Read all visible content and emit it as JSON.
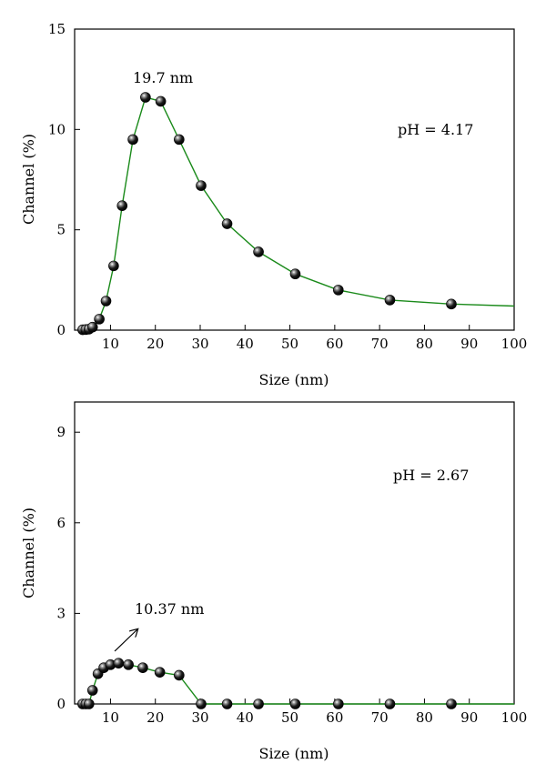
{
  "chart_data": [
    {
      "type": "line",
      "xlabel": "Size (nm)",
      "ylabel": "Channel (%)",
      "xlim": [
        2,
        100
      ],
      "ylim": [
        0,
        15
      ],
      "xticks": [
        10,
        20,
        30,
        40,
        50,
        60,
        70,
        80,
        90,
        100
      ],
      "yticks": [
        0,
        5,
        10,
        15
      ],
      "line_color": "#1a8a1a",
      "marker": "black-sphere",
      "grid": false,
      "series": [
        {
          "x": [
            3.8,
            4.5,
            5.2,
            6.0,
            7.5,
            9.0,
            10.7,
            12.6,
            15.0,
            17.8,
            21.2,
            25.3,
            30.2,
            36.0,
            43.0,
            51.2,
            60.8,
            72.3,
            86.0
          ],
          "y": [
            0.02,
            0.03,
            0.05,
            0.15,
            0.55,
            1.45,
            3.2,
            6.2,
            9.5,
            11.6,
            11.4,
            9.5,
            7.2,
            5.3,
            3.9,
            2.8,
            2.0,
            1.5,
            1.3
          ]
        }
      ],
      "line_tail": {
        "x": 100,
        "y": 1.2
      },
      "annotations": [
        {
          "text": "19.7 nm"
        },
        {
          "text": "pH = 4.17"
        }
      ]
    },
    {
      "type": "line",
      "xlabel": "Size (nm)",
      "ylabel": "Channel (%)",
      "xlim": [
        2,
        100
      ],
      "ylim": [
        0,
        10
      ],
      "xticks": [
        10,
        20,
        30,
        40,
        50,
        60,
        70,
        80,
        90,
        100
      ],
      "yticks": [
        0,
        3,
        6,
        9
      ],
      "line_color": "#1a8a1a",
      "marker": "black-sphere",
      "grid": false,
      "series": [
        {
          "x": [
            3.8,
            4.5,
            5.2,
            6.0,
            7.2,
            8.5,
            10.0,
            11.8,
            14.0,
            17.2,
            21.0,
            25.3,
            30.2,
            36.0,
            43.0,
            51.2,
            60.8,
            72.3,
            86.0
          ],
          "y": [
            0.0,
            0.0,
            0.0,
            0.45,
            1.0,
            1.2,
            1.3,
            1.35,
            1.3,
            1.2,
            1.05,
            0.95,
            0.0,
            0.0,
            0.0,
            0.0,
            0.0,
            0.0,
            0.0
          ]
        }
      ],
      "line_tail": {
        "x": 100,
        "y": 0
      },
      "annotations": [
        {
          "text": "10.37 nm"
        },
        {
          "text": "pH = 2.67"
        }
      ]
    }
  ]
}
